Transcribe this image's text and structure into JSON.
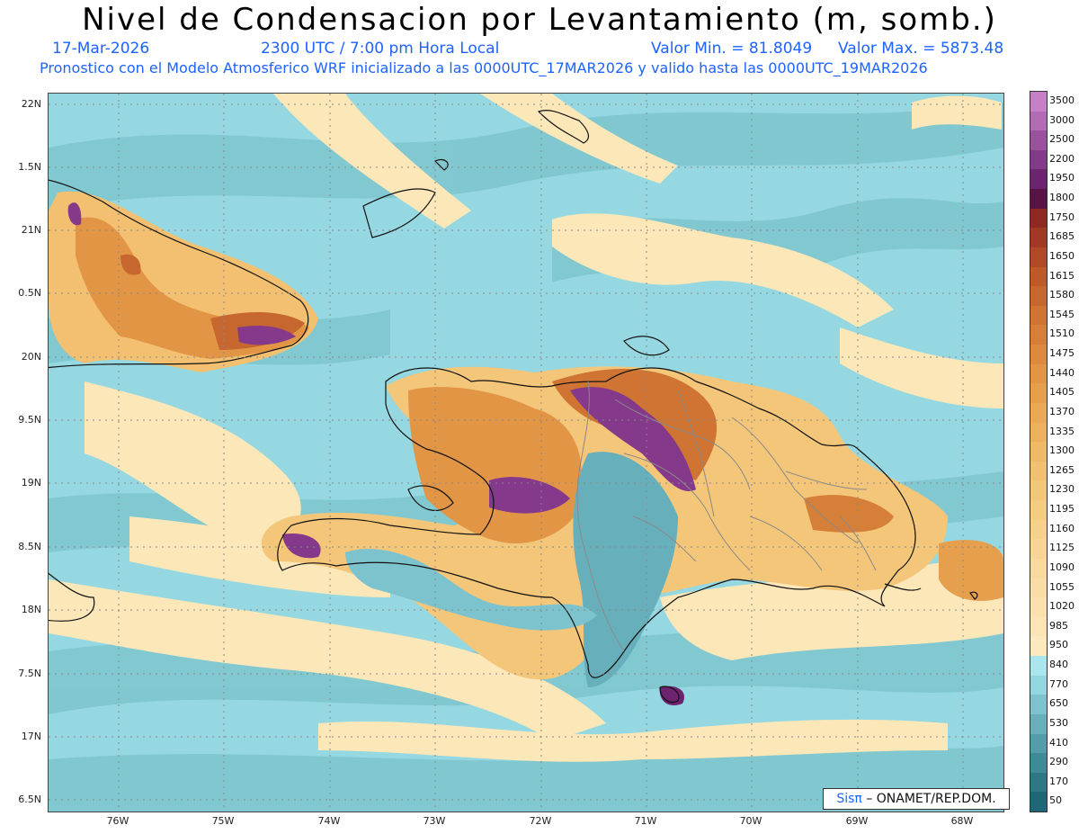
{
  "header": {
    "title": "Nivel de Condensacion por Levantamiento (m, somb.)",
    "date": "17-Mar-2026",
    "time": "2300 UTC / 7:00 pm Hora Local",
    "valmin": "Valor Min. = 81.8049",
    "valmax": "Valor Max. = 5873.48",
    "model_line": "Pronostico con el Modelo Atmosferico WRF inicializado a las 0000UTC_17MAR2026 y valido hasta las  0000UTC_19MAR2026"
  },
  "axes": {
    "lat_labels": [
      "22N",
      "1.5N",
      "21N",
      "0.5N",
      "20N",
      "9.5N",
      "19N",
      "8.5N",
      "18N",
      "7.5N",
      "17N",
      "6.5N"
    ],
    "lon_labels": [
      "76W",
      "75W",
      "74W",
      "73W",
      "72W",
      "71W",
      "70W",
      "69W",
      "68W"
    ]
  },
  "colorbar": {
    "labels": [
      "3500",
      "3000",
      "2500",
      "2200",
      "1950",
      "1800",
      "1750",
      "1685",
      "1650",
      "1615",
      "1580",
      "1545",
      "1510",
      "1475",
      "1440",
      "1405",
      "1370",
      "1335",
      "1300",
      "1265",
      "1230",
      "1195",
      "1160",
      "1125",
      "1090",
      "1055",
      "1020",
      "985",
      "950",
      "840",
      "770",
      "650",
      "530",
      "410",
      "290",
      "170",
      "50"
    ],
    "colors": [
      "#c77fc6",
      "#b46bb5",
      "#9c519e",
      "#85398a",
      "#6e2370",
      "#5a1345",
      "#8f2a22",
      "#a03a23",
      "#b04a26",
      "#bc5a2a",
      "#c6672f",
      "#cf7433",
      "#d67f38",
      "#dd8a3e",
      "#e29545",
      "#e69f4d",
      "#eaa955",
      "#edb15e",
      "#f0b967",
      "#f2c070",
      "#f4c679",
      "#f6cc82",
      "#f7d18b",
      "#f8d594",
      "#f9d99c",
      "#fadda4",
      "#fbe1ac",
      "#fbe5b5",
      "#fce9bd",
      "#a9e6ee",
      "#92d6df",
      "#7cc3cd",
      "#67b0bb",
      "#529da9",
      "#3f8a97",
      "#2e7886",
      "#1e6776"
    ]
  },
  "credit": {
    "brand": "Sisπ",
    "org": "– ONAMET/REP.DOM."
  }
}
